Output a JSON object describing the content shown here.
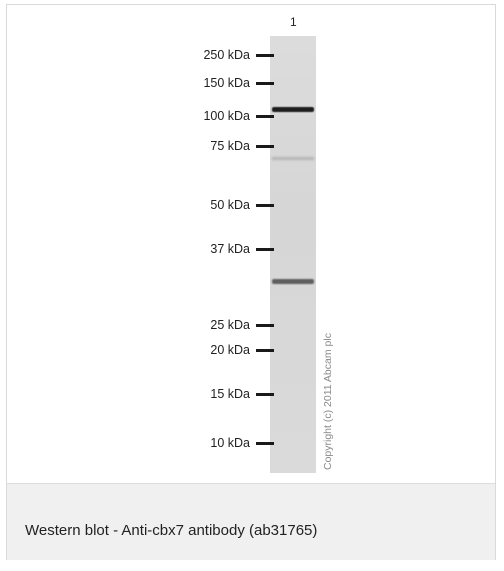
{
  "figure": {
    "lane_number": "1",
    "copyright": "Copyright (c) 2011 Abcam plc",
    "markers": [
      {
        "label": "250 kDa"
      },
      {
        "label": "150 kDa"
      },
      {
        "label": "100 kDa"
      },
      {
        "label": "75 kDa"
      },
      {
        "label": "50 kDa"
      },
      {
        "label": "37 kDa"
      },
      {
        "label": "25 kDa"
      },
      {
        "label": "20 kDa"
      },
      {
        "label": "15 kDa"
      },
      {
        "label": "10 kDa"
      }
    ]
  },
  "caption": "Western blot - Anti-cbx7 antibody (ab31765)"
}
